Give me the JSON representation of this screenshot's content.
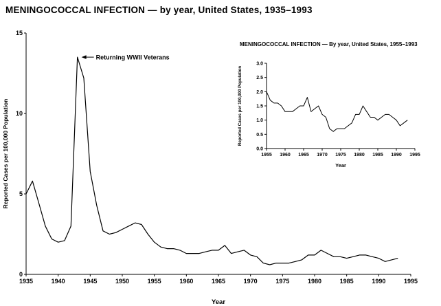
{
  "title": "MENINGOCOCCAL INFECTION — by year, United States, 1935–1993",
  "line_color": "#000000",
  "chart_data": [
    {
      "type": "line",
      "title": "MENINGOCOCCAL INFECTION — by year, United States, 1935–1993",
      "xlabel": "Year",
      "ylabel": "Reported Cases per 100,000 Population",
      "xlim": [
        1935,
        1995
      ],
      "ylim": [
        0,
        15
      ],
      "xticks": [
        1935,
        1940,
        1945,
        1950,
        1955,
        1960,
        1965,
        1970,
        1975,
        1980,
        1985,
        1990,
        1995
      ],
      "yticks": [
        0,
        5,
        10,
        15
      ],
      "grid": false,
      "legend": "none",
      "annotation": {
        "text": "Returning WWII Veterans",
        "x": 1943,
        "y": 13.5
      },
      "x": [
        1935,
        1936,
        1937,
        1938,
        1939,
        1940,
        1941,
        1942,
        1943,
        1944,
        1945,
        1946,
        1947,
        1948,
        1949,
        1950,
        1951,
        1952,
        1953,
        1954,
        1955,
        1956,
        1957,
        1958,
        1959,
        1960,
        1961,
        1962,
        1963,
        1964,
        1965,
        1966,
        1967,
        1968,
        1969,
        1970,
        1971,
        1972,
        1973,
        1974,
        1975,
        1976,
        1977,
        1978,
        1979,
        1980,
        1981,
        1982,
        1983,
        1984,
        1985,
        1986,
        1987,
        1988,
        1989,
        1990,
        1991,
        1992,
        1993
      ],
      "values": [
        5.0,
        5.8,
        4.4,
        3.0,
        2.2,
        2.0,
        2.1,
        3.0,
        13.5,
        12.2,
        6.4,
        4.3,
        2.7,
        2.5,
        2.6,
        2.8,
        3.0,
        3.2,
        3.1,
        2.5,
        2.0,
        1.7,
        1.6,
        1.6,
        1.5,
        1.3,
        1.3,
        1.3,
        1.4,
        1.5,
        1.5,
        1.8,
        1.3,
        1.4,
        1.5,
        1.2,
        1.1,
        0.7,
        0.6,
        0.7,
        0.7,
        0.7,
        0.8,
        0.9,
        1.2,
        1.2,
        1.5,
        1.3,
        1.1,
        1.1,
        1.0,
        1.1,
        1.2,
        1.2,
        1.1,
        1.0,
        0.8,
        0.9,
        1.0
      ]
    },
    {
      "type": "line",
      "title": "MENINGOCOCCAL INFECTION — By year, United States, 1955–1993",
      "xlabel": "Year",
      "ylabel": "Reported Cases per 100,000 Population",
      "xlim": [
        1955,
        1995
      ],
      "ylim": [
        0,
        3
      ],
      "xticks": [
        1955,
        1960,
        1965,
        1970,
        1975,
        1980,
        1985,
        1990,
        1995
      ],
      "yticks": [
        0,
        0.5,
        1,
        1.5,
        2,
        2.5,
        3
      ],
      "grid": false,
      "legend": "none",
      "x": [
        1955,
        1956,
        1957,
        1958,
        1959,
        1960,
        1961,
        1962,
        1963,
        1964,
        1965,
        1966,
        1967,
        1968,
        1969,
        1970,
        1971,
        1972,
        1973,
        1974,
        1975,
        1976,
        1977,
        1978,
        1979,
        1980,
        1981,
        1982,
        1983,
        1984,
        1985,
        1986,
        1987,
        1988,
        1989,
        1990,
        1991,
        1992,
        1993
      ],
      "values": [
        2.0,
        1.7,
        1.6,
        1.6,
        1.5,
        1.3,
        1.3,
        1.3,
        1.4,
        1.5,
        1.5,
        1.8,
        1.3,
        1.4,
        1.5,
        1.2,
        1.1,
        0.7,
        0.6,
        0.7,
        0.7,
        0.7,
        0.8,
        0.9,
        1.2,
        1.2,
        1.5,
        1.3,
        1.1,
        1.1,
        1.0,
        1.1,
        1.2,
        1.2,
        1.1,
        1.0,
        0.8,
        0.9,
        1.0
      ]
    }
  ]
}
